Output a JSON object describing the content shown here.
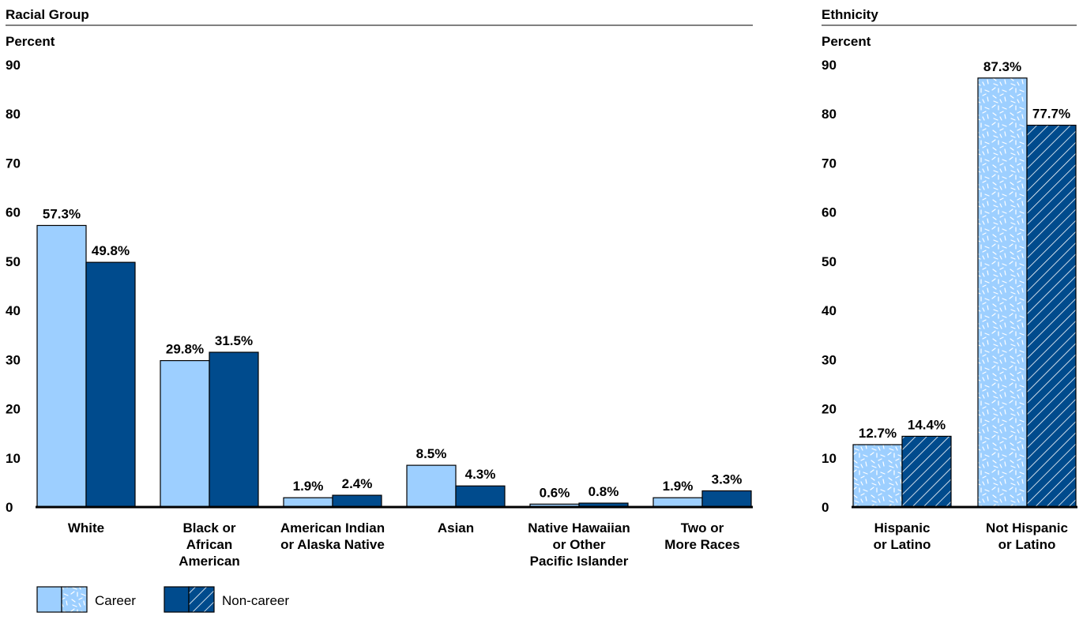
{
  "colors": {
    "career": "#9dcfff",
    "noncareer": "#004b8d",
    "career_pattern": "#ffffff",
    "noncareer_pattern": "#ffffff",
    "rule": "#000000"
  },
  "legend": {
    "career_label": "Career",
    "noncareer_label": "Non-career"
  },
  "chart_data": [
    {
      "type": "bar",
      "title": "Racial Group",
      "ylabel": "Percent",
      "ylim": [
        0,
        90
      ],
      "yticks": [
        0,
        10,
        20,
        30,
        40,
        50,
        60,
        70,
        80,
        90
      ],
      "categories": [
        [
          "White"
        ],
        [
          "Black or",
          "African",
          "American"
        ],
        [
          "American Indian",
          "or Alaska Native"
        ],
        [
          "Asian"
        ],
        [
          "Native Hawaiian",
          "or Other",
          "Pacific Islander"
        ],
        [
          "Two or",
          "More Races"
        ]
      ],
      "series": [
        {
          "name": "Career",
          "values": [
            57.3,
            29.8,
            1.9,
            8.5,
            0.6,
            1.9
          ],
          "labels": [
            "57.3%",
            "29.8%",
            "1.9%",
            "8.5%",
            "0.6%",
            "1.9%"
          ]
        },
        {
          "name": "Non-career",
          "values": [
            49.8,
            31.5,
            2.4,
            4.3,
            0.8,
            3.3
          ],
          "labels": [
            "49.8%",
            "31.5%",
            "2.4%",
            "4.3%",
            "0.8%",
            "3.3%"
          ]
        }
      ],
      "patterned": false,
      "grid": false
    },
    {
      "type": "bar",
      "title": "Ethnicity",
      "ylabel": "Percent",
      "ylim": [
        0,
        90
      ],
      "yticks": [
        0,
        10,
        20,
        30,
        40,
        50,
        60,
        70,
        80,
        90
      ],
      "categories": [
        [
          "Hispanic",
          "or Latino"
        ],
        [
          "Not Hispanic",
          "or Latino"
        ]
      ],
      "series": [
        {
          "name": "Career",
          "values": [
            12.7,
            87.3
          ],
          "labels": [
            "12.7%",
            "87.3%"
          ]
        },
        {
          "name": "Non-career",
          "values": [
            14.4,
            77.7
          ],
          "labels": [
            "14.4%",
            "77.7%"
          ]
        }
      ],
      "patterned": true,
      "grid": false
    }
  ]
}
